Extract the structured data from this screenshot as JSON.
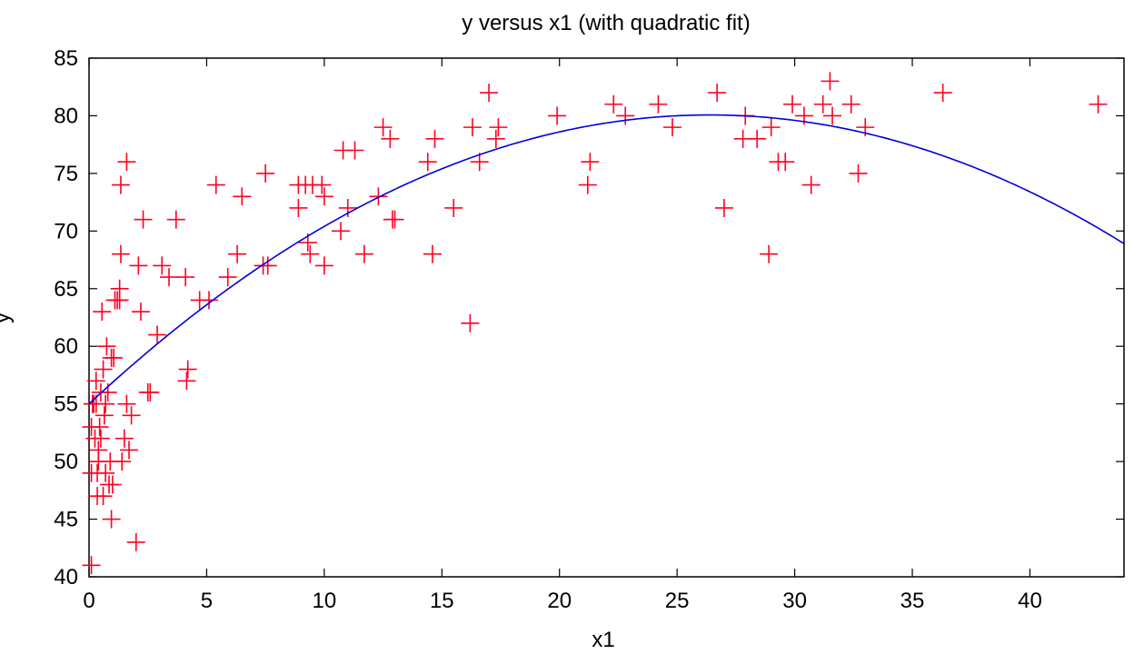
{
  "chart_data": {
    "type": "scatter",
    "title": "y versus x1 (with quadratic fit)",
    "xlabel": "x1",
    "ylabel": "y",
    "xlim": [
      0,
      44
    ],
    "ylim": [
      40,
      85
    ],
    "xticks": [
      0,
      5,
      10,
      15,
      20,
      25,
      30,
      35,
      40
    ],
    "yticks": [
      40,
      45,
      50,
      55,
      60,
      65,
      70,
      75,
      80,
      85
    ],
    "grid": false,
    "legend": "none",
    "colors": {
      "points": "#ff0022",
      "fit": "#0000dd",
      "axes": "#000000"
    },
    "series": [
      {
        "kind": "points",
        "marker": "plus",
        "points": [
          [
            0.1,
            41
          ],
          [
            0.1,
            49
          ],
          [
            0.1,
            53
          ],
          [
            0.15,
            55
          ],
          [
            0.2,
            55
          ],
          [
            0.25,
            52
          ],
          [
            0.3,
            55
          ],
          [
            0.3,
            57
          ],
          [
            0.35,
            49
          ],
          [
            0.35,
            47
          ],
          [
            0.4,
            51
          ],
          [
            0.4,
            50
          ],
          [
            0.45,
            53
          ],
          [
            0.5,
            52
          ],
          [
            0.5,
            56
          ],
          [
            0.55,
            63
          ],
          [
            0.6,
            47
          ],
          [
            0.6,
            58
          ],
          [
            0.65,
            54
          ],
          [
            0.7,
            49
          ],
          [
            0.7,
            55
          ],
          [
            0.75,
            60
          ],
          [
            0.8,
            56
          ],
          [
            0.85,
            48
          ],
          [
            0.9,
            50
          ],
          [
            0.95,
            59
          ],
          [
            0.95,
            45
          ],
          [
            1.0,
            48
          ],
          [
            1.05,
            59
          ],
          [
            1.1,
            64
          ],
          [
            1.2,
            64
          ],
          [
            1.3,
            64
          ],
          [
            1.3,
            65
          ],
          [
            1.35,
            68
          ],
          [
            1.35,
            74
          ],
          [
            1.4,
            50
          ],
          [
            1.5,
            52
          ],
          [
            1.6,
            76
          ],
          [
            1.6,
            55
          ],
          [
            1.7,
            51
          ],
          [
            1.8,
            54
          ],
          [
            2.0,
            43
          ],
          [
            2.1,
            67
          ],
          [
            2.2,
            63
          ],
          [
            2.3,
            71
          ],
          [
            2.5,
            56
          ],
          [
            2.6,
            56
          ],
          [
            2.9,
            61
          ],
          [
            3.1,
            67
          ],
          [
            3.4,
            66
          ],
          [
            3.7,
            71
          ],
          [
            4.1,
            66
          ],
          [
            4.15,
            57
          ],
          [
            4.2,
            58
          ],
          [
            4.7,
            64
          ],
          [
            5.1,
            64
          ],
          [
            5.4,
            74
          ],
          [
            5.9,
            66
          ],
          [
            6.3,
            68
          ],
          [
            6.5,
            73
          ],
          [
            7.4,
            67
          ],
          [
            7.5,
            75
          ],
          [
            7.6,
            67
          ],
          [
            8.9,
            74
          ],
          [
            8.9,
            72
          ],
          [
            9.2,
            74
          ],
          [
            9.3,
            69
          ],
          [
            9.4,
            68
          ],
          [
            9.5,
            74
          ],
          [
            9.9,
            74
          ],
          [
            10.0,
            73
          ],
          [
            10.0,
            67
          ],
          [
            10.7,
            70
          ],
          [
            10.8,
            77
          ],
          [
            11.0,
            72
          ],
          [
            11.3,
            77
          ],
          [
            11.7,
            68
          ],
          [
            12.3,
            73
          ],
          [
            12.5,
            79
          ],
          [
            12.8,
            78
          ],
          [
            12.9,
            71
          ],
          [
            13.0,
            71
          ],
          [
            14.4,
            76
          ],
          [
            14.6,
            68
          ],
          [
            14.7,
            78
          ],
          [
            15.5,
            72
          ],
          [
            16.2,
            62
          ],
          [
            16.3,
            79
          ],
          [
            16.6,
            76
          ],
          [
            17.0,
            82
          ],
          [
            17.3,
            78
          ],
          [
            17.4,
            79
          ],
          [
            19.9,
            80
          ],
          [
            21.2,
            74
          ],
          [
            21.3,
            76
          ],
          [
            22.3,
            81
          ],
          [
            22.8,
            80
          ],
          [
            24.2,
            81
          ],
          [
            24.8,
            79
          ],
          [
            26.7,
            82
          ],
          [
            27.0,
            72
          ],
          [
            27.8,
            78
          ],
          [
            27.9,
            80
          ],
          [
            28.4,
            78
          ],
          [
            28.9,
            68
          ],
          [
            29.0,
            79
          ],
          [
            29.3,
            76
          ],
          [
            29.6,
            76
          ],
          [
            29.9,
            81
          ],
          [
            30.4,
            80
          ],
          [
            30.7,
            74
          ],
          [
            31.2,
            81
          ],
          [
            31.5,
            83
          ],
          [
            31.6,
            80
          ],
          [
            32.4,
            81
          ],
          [
            32.7,
            75
          ],
          [
            33.0,
            79
          ],
          [
            36.3,
            82
          ],
          [
            42.9,
            81
          ]
        ]
      },
      {
        "kind": "fit",
        "model": "quadratic",
        "coefficients": {
          "a": -0.036,
          "b": 1.9,
          "c": 55.0
        },
        "x_range": [
          0,
          44
        ]
      }
    ]
  }
}
